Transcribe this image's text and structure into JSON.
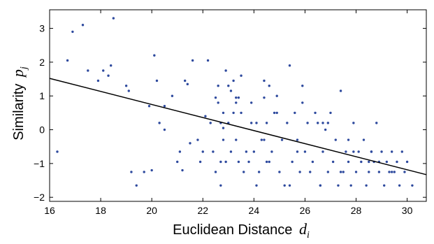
{
  "chart_data": {
    "type": "scatter",
    "xlabel": "Euclidean Distance",
    "xlabel_symbol": "d",
    "xlabel_subscript": "i",
    "ylabel": "Similarity",
    "ylabel_symbol": "p",
    "ylabel_subscript": "j",
    "xlim": [
      16,
      30.75
    ],
    "ylim": [
      -2.12,
      3.55
    ],
    "x_ticks": [
      16,
      18,
      20,
      22,
      24,
      26,
      28,
      30
    ],
    "y_ticks": [
      -2,
      -1,
      0,
      1,
      2,
      3
    ],
    "x_tick_labels": [
      "16",
      "18",
      "20",
      "22",
      "24",
      "26",
      "28",
      "30"
    ],
    "y_tick_labels": [
      "−2",
      "−1",
      "0",
      "1",
      "2",
      "3"
    ],
    "grid": false,
    "point_color": "#2e4a9e",
    "line_color": "#000000",
    "fit_line": {
      "x": [
        16,
        30.75
      ],
      "y": [
        1.52,
        -1.33
      ]
    },
    "points": {
      "x": [
        16.3,
        16.7,
        16.9,
        17.3,
        17.5,
        17.9,
        18.3,
        18.4,
        18.5,
        18.1,
        19.0,
        19.1,
        19.2,
        19.4,
        19.7,
        19.9,
        20.0,
        20.1,
        20.2,
        20.3,
        20.5,
        20.5,
        20.8,
        21.0,
        21.1,
        21.2,
        21.3,
        21.4,
        21.5,
        21.6,
        21.8,
        21.9,
        22.0,
        22.1,
        22.2,
        22.3,
        22.4,
        22.5,
        22.5,
        22.6,
        22.6,
        22.7,
        22.7,
        22.8,
        22.8,
        22.9,
        22.9,
        23.0,
        23.0,
        23.1,
        23.1,
        23.2,
        23.2,
        23.3,
        23.3,
        23.4,
        23.4,
        23.5,
        23.5,
        23.6,
        23.7,
        23.8,
        23.9,
        24.0,
        24.1,
        24.1,
        24.2,
        24.3,
        24.4,
        24.4,
        24.5,
        24.5,
        24.6,
        24.7,
        24.8,
        24.9,
        25.0,
        25.1,
        25.2,
        25.3,
        25.4,
        25.5,
        25.6,
        25.7,
        25.8,
        25.9,
        26.0,
        26.1,
        26.2,
        26.3,
        26.4,
        26.5,
        26.6,
        26.7,
        26.8,
        26.9,
        27.0,
        27.1,
        27.2,
        27.3,
        27.4,
        27.5,
        27.6,
        27.7,
        27.8,
        27.9,
        28.0,
        28.1,
        28.2,
        28.3,
        28.4,
        28.5,
        28.6,
        28.7,
        28.8,
        28.9,
        29.0,
        29.1,
        29.2,
        29.3,
        29.4,
        29.5,
        29.6,
        29.7,
        29.8,
        29.9,
        30.0,
        30.2,
        22.8,
        23.9,
        24.9,
        25.9,
        26.9,
        27.9,
        28.9,
        25.4,
        26.6,
        27.4,
        28.6,
        29.4,
        23.3,
        24.6,
        25.7,
        26.7,
        27.7,
        28.5,
        22.7,
        24.4
      ],
      "y": [
        -0.65,
        2.05,
        2.9,
        3.1,
        1.75,
        1.45,
        1.6,
        1.9,
        3.3,
        1.75,
        1.3,
        1.15,
        -1.25,
        -1.65,
        -1.25,
        0.7,
        -1.2,
        2.2,
        1.45,
        0.2,
        0.7,
        0.0,
        1.0,
        -0.95,
        -0.65,
        -1.2,
        1.45,
        1.35,
        -0.4,
        2.05,
        -0.3,
        -0.95,
        -0.65,
        0.4,
        2.05,
        0.2,
        -0.65,
        0.95,
        -1.25,
        1.3,
        0.8,
        -0.95,
        -1.65,
        0.5,
        -0.3,
        1.75,
        -0.95,
        1.3,
        0.2,
        -0.65,
        1.15,
        1.45,
        0.5,
        0.8,
        -0.3,
        0.95,
        -0.95,
        0.5,
        1.6,
        -1.25,
        -0.65,
        -0.95,
        0.8,
        -0.65,
        -1.65,
        0.2,
        -1.25,
        -0.3,
        1.45,
        0.95,
        -0.95,
        0.2,
        1.3,
        -0.65,
        0.5,
        1.0,
        -1.25,
        -0.3,
        -1.65,
        0.2,
        1.9,
        -0.95,
        0.5,
        -0.3,
        -1.25,
        1.3,
        -0.65,
        0.2,
        -1.25,
        -0.95,
        0.5,
        0.2,
        -1.65,
        -0.65,
        0.0,
        -1.25,
        0.5,
        -0.95,
        -0.3,
        -1.65,
        1.15,
        -1.25,
        -0.65,
        -0.95,
        -1.65,
        0.2,
        -1.25,
        -0.65,
        -0.95,
        -0.3,
        -1.65,
        -1.25,
        -0.65,
        -0.95,
        0.2,
        -1.25,
        -0.65,
        -1.65,
        -0.95,
        -1.25,
        -0.65,
        -1.25,
        -0.95,
        -1.65,
        -0.65,
        -1.25,
        -0.95,
        -1.65,
        0.05,
        0.2,
        0.5,
        0.8,
        0.2,
        -0.65,
        -0.95,
        -1.65,
        -1.65,
        -1.25,
        -0.65,
        -1.25,
        0.95,
        -0.95,
        -0.65,
        0.2,
        -0.3,
        -0.95,
        0.2,
        -0.3
      ]
    }
  }
}
